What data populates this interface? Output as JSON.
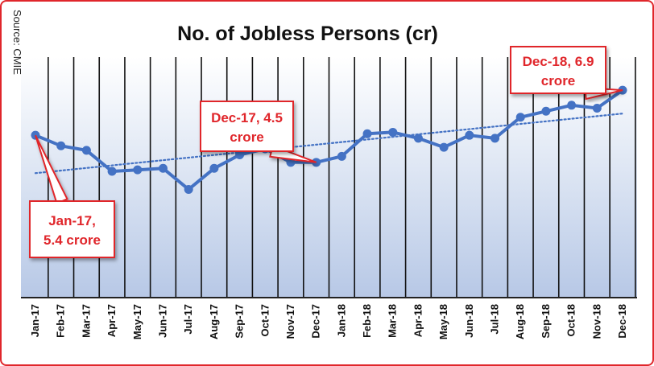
{
  "source": "Source: CMIE",
  "chart_data": {
    "type": "line",
    "title": "No. of Jobless Persons (cr)",
    "xlabel": "",
    "ylabel": "",
    "categories": [
      "Jan-17",
      "Feb-17",
      "Mar-17",
      "Apr-17",
      "May-17",
      "Jun-17",
      "Jul-17",
      "Aug-17",
      "Sep-17",
      "Oct-17",
      "Nov-17",
      "Dec-17",
      "Jan-18",
      "Feb-18",
      "Mar-18",
      "Apr-18",
      "May-18",
      "Jun-18",
      "Jul-18",
      "Aug-18",
      "Sep-18",
      "Oct-18",
      "Nov-18",
      "Dec-18"
    ],
    "series": [
      {
        "values": [
          5.4,
          5.05,
          4.9,
          4.2,
          4.25,
          4.3,
          3.6,
          4.3,
          4.75,
          4.95,
          4.5,
          4.5,
          4.7,
          5.45,
          5.5,
          5.3,
          5.0,
          5.4,
          5.3,
          6.0,
          6.2,
          6.4,
          6.3,
          6.9
        ],
        "color": "#4472c4"
      }
    ],
    "trendline": {
      "type": "linear",
      "style": "dotted",
      "color": "#4472c4"
    },
    "ylim": [
      0,
      8
    ],
    "grid": "vertical",
    "legend": "none",
    "annotations": [
      {
        "index": 0,
        "text_line1": "Jan-17,",
        "text_line2": "5.4 crore"
      },
      {
        "index": 11,
        "text_line1": "Dec-17, 4.5",
        "text_line2": "crore"
      },
      {
        "index": 23,
        "text_line1": "Dec-18, 6.9",
        "text_line2": "crore"
      }
    ]
  }
}
